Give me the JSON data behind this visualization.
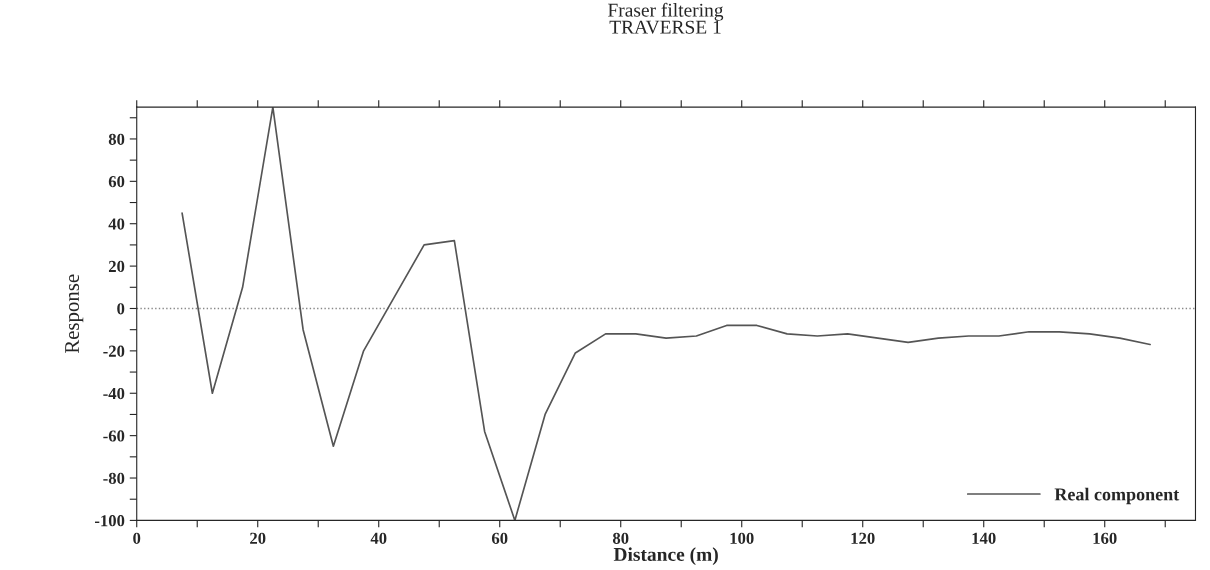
{
  "chart_data": {
    "type": "line",
    "title": "Fraser filtering\nTRAVERSE 1",
    "xlabel": "Distance (m)",
    "ylabel": "Response",
    "x": [
      7.5,
      12.5,
      17.5,
      22.5,
      27.5,
      32.5,
      37.5,
      42.5,
      47.5,
      52.5,
      57.5,
      62.5,
      67.5,
      72.5,
      77.5,
      82.5,
      87.5,
      92.5,
      97.5,
      102.5,
      107.5,
      112.5,
      117.5,
      122.5,
      127.5,
      132.5,
      137.5,
      142.5,
      147.5,
      152.5,
      157.5,
      162.5,
      167.5
    ],
    "series": [
      {
        "name": "Real component",
        "color": "#555555",
        "values": [
          45,
          -40,
          10,
          95,
          -10,
          -65,
          -20,
          5,
          30,
          32,
          -58,
          -100,
          -50,
          -21,
          -12,
          -12,
          -14,
          -13,
          -8,
          -8,
          -12,
          -13,
          -12,
          -14,
          -16,
          -14,
          -13,
          -13,
          -11,
          -11,
          -12,
          -14,
          -17
        ]
      }
    ],
    "xlim": [
      0,
      175
    ],
    "ylim": [
      -100,
      95
    ],
    "xticks": [
      0,
      {
        "value": 10,
        "label": null
      },
      20,
      {
        "value": 30,
        "label": null
      },
      40,
      {
        "value": 50,
        "label": null
      },
      60,
      {
        "value": 70,
        "label": null
      },
      80,
      {
        "value": 90,
        "label": null
      },
      100,
      {
        "value": 110,
        "label": null
      },
      120,
      {
        "value": 130,
        "label": null
      },
      140,
      {
        "value": 150,
        "label": null
      },
      160,
      {
        "value": 170,
        "label": null
      }
    ],
    "yticks": [
      -100,
      {
        "value": -90,
        "label": null
      },
      -80,
      {
        "value": -70,
        "label": null
      },
      -60,
      {
        "value": -50,
        "label": null
      },
      -40,
      {
        "value": -30,
        "label": null
      },
      -20,
      {
        "value": -10,
        "label": null
      },
      0,
      {
        "value": 10,
        "label": null
      },
      20,
      {
        "value": 30,
        "label": null
      },
      40,
      {
        "value": 50,
        "label": null
      },
      60,
      {
        "value": 70,
        "label": null
      },
      80,
      {
        "value": 90,
        "label": null
      }
    ],
    "ref_lines": [
      {
        "axis": "y",
        "value": 0,
        "color": "#888888",
        "line_style": "dotted"
      }
    ],
    "legend": "bottom right",
    "grid": false,
    "marker": "none",
    "line_style": "solid"
  }
}
